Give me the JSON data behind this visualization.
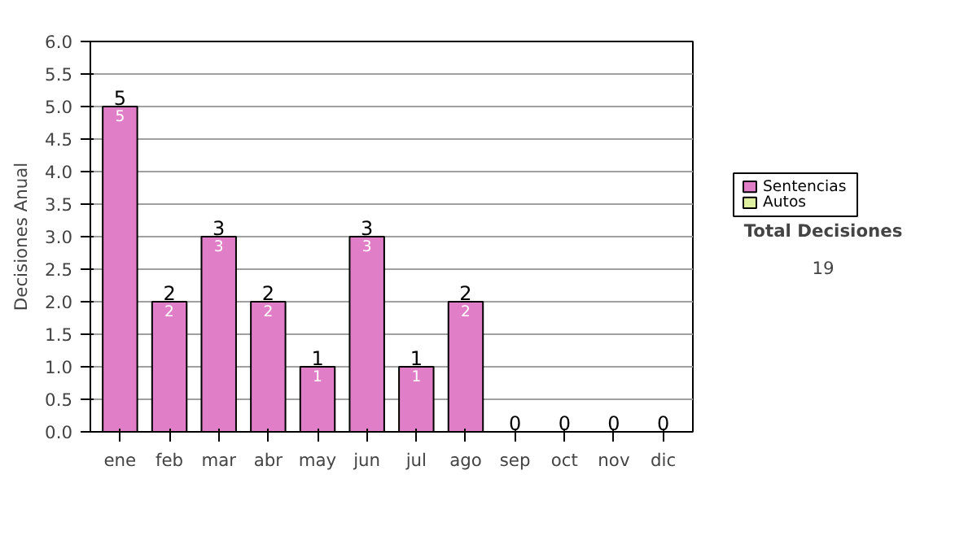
{
  "chart_data": {
    "type": "bar",
    "stacked": true,
    "ylabel": "Decisiones Anual",
    "categories": [
      "ene",
      "feb",
      "mar",
      "abr",
      "may",
      "jun",
      "jul",
      "ago",
      "sep",
      "oct",
      "nov",
      "dic"
    ],
    "series": [
      {
        "name": "Sentencias",
        "color": "#e07fc8",
        "values": [
          5,
          2,
          3,
          2,
          1,
          3,
          1,
          2,
          0,
          0,
          0,
          0
        ],
        "value_labels": [
          "5",
          "2",
          "3",
          "2",
          "1",
          "3",
          "1",
          "2",
          null,
          null,
          null,
          null
        ]
      },
      {
        "name": "Autos",
        "color": "#dff0a0",
        "values": [
          0,
          0,
          0,
          0,
          0,
          0,
          0,
          0,
          0,
          0,
          0,
          0
        ]
      }
    ],
    "totals": [
      "5",
      "2",
      "3",
      "2",
      "1",
      "3",
      "1",
      "2",
      "0",
      "0",
      "0",
      "0"
    ],
    "ylim": [
      0,
      6
    ],
    "yticks": [
      {
        "value": 0,
        "label": "0.0"
      },
      {
        "value": 0.5,
        "label": "0.5"
      },
      {
        "value": 1,
        "label": "1.0"
      },
      {
        "value": 1.5,
        "label": "1.5"
      },
      {
        "value": 2,
        "label": "2.0"
      },
      {
        "value": 2.5,
        "label": "2.5"
      },
      {
        "value": 3,
        "label": "3.0"
      },
      {
        "value": 3.5,
        "label": "3.5"
      },
      {
        "value": 4,
        "label": "4.0"
      },
      {
        "value": 4.5,
        "label": "4.5"
      },
      {
        "value": 5,
        "label": "5.0"
      },
      {
        "value": 5.5,
        "label": "5.5"
      },
      {
        "value": 6,
        "label": "6.0"
      }
    ],
    "grid": "y",
    "legend": "right",
    "annotations": [
      "Total Decisiones",
      "19"
    ]
  }
}
